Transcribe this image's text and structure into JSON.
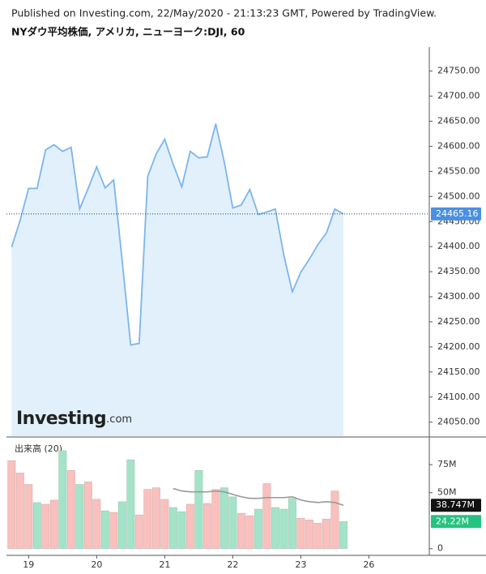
{
  "header": "Published on Investing.com, 22/May/2020 - 21:13:23 GMT, Powered by TradingView.",
  "chart_data": [
    {
      "type": "area",
      "title": "NYダウ平均株価, アメリカ, ニューヨーク:DJI, 60",
      "watermark": "Investing",
      "watermark_suffix": ".com",
      "x": [
        0,
        1,
        2,
        3,
        4,
        5,
        6,
        7,
        8,
        9,
        10,
        11,
        12,
        13,
        14,
        15,
        16,
        17,
        18,
        19,
        20,
        21,
        22,
        23,
        24,
        25,
        26,
        27,
        28,
        29,
        30,
        31,
        32,
        33,
        34,
        35,
        36,
        37,
        38,
        39
      ],
      "values": [
        24399,
        24452,
        24516,
        24516,
        24593,
        24603,
        24590,
        24598,
        24475,
        24516,
        24559,
        24517,
        24533,
        24372,
        24204,
        24207,
        24540,
        24585,
        24614,
        24564,
        24519,
        24590,
        24577,
        24579,
        24645,
        24569,
        24477,
        24483,
        24514,
        24464,
        24469,
        24475,
        24383,
        24310,
        24349,
        24375,
        24404,
        24427,
        24475,
        24465.16
      ],
      "color": "#7cb5ec",
      "fill": "#e1f0fa",
      "last_color": "#4a90e2",
      "xlim": [
        -0.6,
        49.1
      ],
      "ylim": [
        24022,
        24798
      ],
      "yticks": [
        {
          "value": 24050,
          "label": "24050.00"
        },
        {
          "value": 24100,
          "label": "24100.00"
        },
        {
          "value": 24150,
          "label": "24150.00"
        },
        {
          "value": 24200,
          "label": "24200.00"
        },
        {
          "value": 24250,
          "label": "24250.00"
        },
        {
          "value": 24300,
          "label": "24300.00"
        },
        {
          "value": 24350,
          "label": "24350.00"
        },
        {
          "value": 24400,
          "label": "24400.00"
        },
        {
          "value": 24450,
          "label": "24450.00"
        },
        {
          "value": 24500,
          "label": "24500.00"
        },
        {
          "value": 24550,
          "label": "24550.00"
        },
        {
          "value": 24600,
          "label": "24600.00"
        },
        {
          "value": 24650,
          "label": "24650.00"
        },
        {
          "value": 24700,
          "label": "24700.00"
        },
        {
          "value": 24750,
          "label": "24750.00"
        }
      ]
    },
    {
      "type": "volume",
      "title": "出来高 (20)",
      "x": [
        0,
        1,
        2,
        3,
        4,
        5,
        6,
        7,
        8,
        9,
        10,
        11,
        12,
        13,
        14,
        15,
        16,
        17,
        18,
        19,
        20,
        21,
        22,
        23,
        24,
        25,
        26,
        27,
        28,
        29,
        30,
        31,
        32,
        33,
        34,
        35,
        36,
        37,
        38,
        39
      ],
      "series": [
        {
          "type": "bar",
          "colors": [
            "#f9c0bd",
            "#f9c0bd",
            "#f9c0bd",
            "#a3e4c8",
            "#f9c0bd",
            "#f9c0bd",
            "#a3e4c8",
            "#f9c0bd",
            "#a3e4c8",
            "#f9c0bd",
            "#f9c0bd",
            "#a3e4c8",
            "#f9c0bd",
            "#a3e4c8",
            "#a3e4c8",
            "#f9c0bd",
            "#f9c0bd",
            "#f9c0bd",
            "#f9c0bd",
            "#a3e4c8",
            "#a3e4c8",
            "#f9c0bd",
            "#a3e4c8",
            "#f9c0bd",
            "#f9c0bd",
            "#a3e4c8",
            "#a3e4c8",
            "#f9c0bd",
            "#f9c0bd",
            "#a3e4c8",
            "#f9c0bd",
            "#a3e4c8",
            "#a3e4c8",
            "#a3e4c8",
            "#f9c0bd",
            "#f9c0bd",
            "#f9c0bd",
            "#f9c0bd",
            "#f9c0bd",
            "#a3e4c8"
          ],
          "values": [
            78.7,
            67.6,
            57.4,
            41.2,
            39.7,
            43.4,
            87.5,
            69.9,
            57.4,
            59.6,
            44.1,
            33.8,
            32.4,
            41.9,
            79.4,
            30.1,
            52.9,
            54.4,
            44.1,
            36.8,
            33.1,
            39.7,
            69.9,
            40.4,
            52.9,
            54.4,
            46.3,
            31.6,
            29.4,
            35.3,
            58.1,
            36.8,
            35.3,
            44.9,
            27.2,
            25.7,
            22.8,
            26.5,
            51.5,
            24.22
          ],
          "value_labels": [
            null,
            null,
            null,
            null,
            null,
            null,
            null,
            null,
            null,
            null,
            null,
            null,
            null,
            null,
            null,
            null,
            null,
            null,
            null,
            null,
            null,
            null,
            null,
            null,
            null,
            null,
            null,
            null,
            null,
            null,
            null,
            null,
            null,
            null,
            null,
            null,
            null,
            null,
            null,
            "24.22M"
          ],
          "label_color": "#26c281"
        },
        {
          "type": "line",
          "color": "#999999",
          "values": [
            null,
            null,
            null,
            null,
            null,
            null,
            null,
            null,
            null,
            null,
            null,
            null,
            null,
            null,
            null,
            null,
            null,
            null,
            null,
            53.7,
            51.5,
            50.7,
            50.7,
            50.7,
            51.5,
            50.7,
            48.5,
            46.3,
            44.9,
            44.9,
            45.6,
            45.6,
            45.6,
            46.3,
            43.4,
            41.9,
            41.2,
            41.9,
            41.2,
            38.747
          ],
          "value_labels": [
            null,
            null,
            null,
            null,
            null,
            null,
            null,
            null,
            null,
            null,
            null,
            null,
            null,
            null,
            null,
            null,
            null,
            null,
            null,
            null,
            null,
            null,
            null,
            null,
            null,
            null,
            null,
            null,
            null,
            null,
            null,
            null,
            null,
            null,
            null,
            null,
            null,
            null,
            null,
            "38.747M"
          ],
          "label_color": "#111111"
        }
      ],
      "xlim": [
        -0.6,
        49.1
      ],
      "ylim": [
        -6,
        99
      ],
      "yticks": [
        0,
        {
          "value": 50,
          "label": "50M"
        },
        {
          "value": 75,
          "label": "75M"
        }
      ],
      "xticks": [
        {
          "value": 2,
          "label": "19"
        },
        {
          "value": 10,
          "label": "20"
        },
        {
          "value": 18,
          "label": "21"
        },
        {
          "value": 26,
          "label": "22"
        },
        {
          "value": 34,
          "label": "23"
        },
        {
          "value": 42,
          "label": "26"
        }
      ]
    }
  ]
}
